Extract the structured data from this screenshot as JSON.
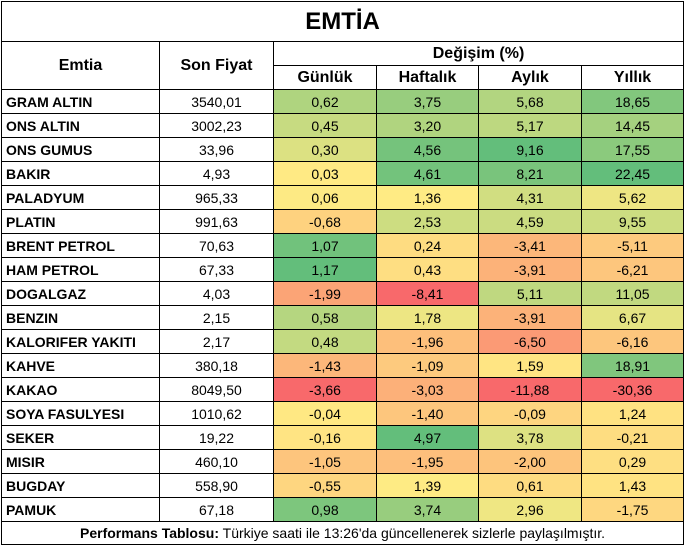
{
  "title": "EMTİA",
  "headers": {
    "commodity": "Emtia",
    "price": "Son Fiyat",
    "change_group": "Değişim (%)",
    "daily": "Günlük",
    "weekly": "Haftalık",
    "monthly": "Aylık",
    "yearly": "Yıllık"
  },
  "rows": [
    {
      "name": "GRAM ALTIN",
      "price": "3540,01",
      "daily": "0,62",
      "weekly": "3,75",
      "monthly": "5,68",
      "yearly": "18,65"
    },
    {
      "name": "ONS ALTIN",
      "price": "3002,23",
      "daily": "0,45",
      "weekly": "3,20",
      "monthly": "5,17",
      "yearly": "14,45"
    },
    {
      "name": "ONS GUMUS",
      "price": "33,96",
      "daily": "0,30",
      "weekly": "4,56",
      "monthly": "9,16",
      "yearly": "17,55"
    },
    {
      "name": "BAKIR",
      "price": "4,93",
      "daily": "0,03",
      "weekly": "4,61",
      "monthly": "8,21",
      "yearly": "22,45"
    },
    {
      "name": "PALADYUM",
      "price": "965,33",
      "daily": "0,06",
      "weekly": "1,36",
      "monthly": "4,31",
      "yearly": "5,62"
    },
    {
      "name": "PLATIN",
      "price": "991,63",
      "daily": "-0,68",
      "weekly": "2,53",
      "monthly": "4,59",
      "yearly": "9,55"
    },
    {
      "name": "BRENT PETROL",
      "price": "70,63",
      "daily": "1,07",
      "weekly": "0,24",
      "monthly": "-3,41",
      "yearly": "-5,11"
    },
    {
      "name": "HAM PETROL",
      "price": "67,33",
      "daily": "1,17",
      "weekly": "0,43",
      "monthly": "-3,91",
      "yearly": "-6,21"
    },
    {
      "name": "DOGALGAZ",
      "price": "4,03",
      "daily": "-1,99",
      "weekly": "-8,41",
      "monthly": "5,11",
      "yearly": "11,05"
    },
    {
      "name": "BENZIN",
      "price": "2,15",
      "daily": "0,58",
      "weekly": "1,78",
      "monthly": "-3,91",
      "yearly": "6,67"
    },
    {
      "name": "KALORIFER YAKITI",
      "price": "2,17",
      "daily": "0,48",
      "weekly": "-1,96",
      "monthly": "-6,50",
      "yearly": "-6,16"
    },
    {
      "name": "KAHVE",
      "price": "380,18",
      "daily": "-1,43",
      "weekly": "-1,09",
      "monthly": "1,59",
      "yearly": "18,91"
    },
    {
      "name": "KAKAO",
      "price": "8049,50",
      "daily": "-3,66",
      "weekly": "-3,03",
      "monthly": "-11,88",
      "yearly": "-30,36"
    },
    {
      "name": "SOYA FASULYESI",
      "price": "1010,62",
      "daily": "-0,04",
      "weekly": "-1,40",
      "monthly": "-0,09",
      "yearly": "1,24"
    },
    {
      "name": "SEKER",
      "price": "19,22",
      "daily": "-0,16",
      "weekly": "4,97",
      "monthly": "3,78",
      "yearly": "-0,21"
    },
    {
      "name": "MISIR",
      "price": "460,10",
      "daily": "-1,05",
      "weekly": "-1,95",
      "monthly": "-2,00",
      "yearly": "0,29"
    },
    {
      "name": "BUGDAY",
      "price": "558,90",
      "daily": "-0,55",
      "weekly": "1,39",
      "monthly": "0,61",
      "yearly": "1,43"
    },
    {
      "name": "PAMUK",
      "price": "67,18",
      "daily": "0,98",
      "weekly": "3,74",
      "monthly": "2,96",
      "yearly": "-1,75"
    }
  ],
  "footer": {
    "bold": "Performans Tablosu:",
    "text": " Türkiye saati ile 13:26'da güncellenerek sizlerle paylaşılmıştır."
  },
  "colors": {
    "red": "#f8696b",
    "yellow": "#ffeb84",
    "green": "#63be7b"
  }
}
